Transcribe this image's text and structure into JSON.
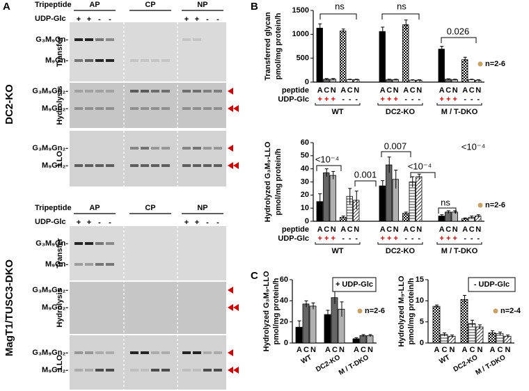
{
  "panel_a": {
    "label": "A",
    "blocks": [
      {
        "title": "DC2-KO",
        "tripeptide": "Tripeptide",
        "udp": "UDP-Glc",
        "lanes": [
          "AP",
          "CP",
          "NP"
        ],
        "signs": [
          "+",
          "+",
          "-",
          "-",
          "+",
          "+",
          "-",
          "-"
        ],
        "sections": [
          {
            "name": "Transfer",
            "bands": [
              "G₃M₉Gn-",
              "M₉Gn-"
            ]
          },
          {
            "name": "Hydrolysis",
            "bands": [
              "G₃M₉Gn₂-",
              "M₉Gn₂-"
            ]
          },
          {
            "name": "LLO",
            "bands": [
              "G₃M₉Gn₂-",
              "M₉Gn₂-"
            ]
          }
        ]
      },
      {
        "title": "MagT1/TUSC3-DKO",
        "tripeptide": "Tripeptide",
        "udp": "UDP-Glc",
        "lanes": [
          "AP",
          "CP",
          "NP"
        ],
        "signs": [
          "+",
          "+",
          "-",
          "-",
          "+",
          "+",
          "-",
          "-"
        ],
        "sections": [
          {
            "name": "Transfer",
            "bands": [
              "G₃M₉Gn-",
              "M₉Gn-"
            ]
          },
          {
            "name": "Hydrolysis",
            "bands": [
              "G₃M₉Gn₂-",
              "M₉Gn₂-"
            ]
          },
          {
            "name": "LLO",
            "bands": [
              "G₃M₉Gn₂-",
              "M₉Gn₂-"
            ]
          }
        ]
      }
    ]
  },
  "chart_data": [
    {
      "type": "bar",
      "panel": "B",
      "ylabel_lines": [
        "Transferred glycan",
        "pmol/mg protein/h"
      ],
      "ylim": [
        0,
        1500
      ],
      "yticks": [
        0,
        500,
        1000,
        1500
      ],
      "categories": [
        "A",
        "C",
        "N",
        "A",
        "C",
        "N",
        "A",
        "C",
        "N",
        "A",
        "C",
        "N",
        "A",
        "C",
        "N",
        "A",
        "C",
        "N"
      ],
      "udp": [
        "+",
        "+",
        "+",
        "-",
        "-",
        "-",
        "+",
        "+",
        "+",
        "-",
        "-",
        "-",
        "+",
        "+",
        "+",
        "-",
        "-",
        "-"
      ],
      "row_labels": [
        "peptide",
        "UDP-Glc"
      ],
      "groups": [
        "WT",
        "DC2-KO",
        "M / T-DKO"
      ],
      "values": [
        1130,
        60,
        60,
        1070,
        50,
        50,
        1060,
        50,
        50,
        1200,
        40,
        40,
        690,
        60,
        50,
        470,
        50,
        40
      ],
      "errors": [
        90,
        15,
        15,
        40,
        10,
        10,
        90,
        10,
        10,
        100,
        10,
        10,
        60,
        10,
        10,
        50,
        10,
        10
      ],
      "colors": [
        "#000000",
        "#666666",
        "#b0b0b0",
        "checker",
        "hatch",
        "diagonal",
        "#000000",
        "#666666",
        "#b0b0b0",
        "checker",
        "hatch",
        "diagonal",
        "#000000",
        "#666666",
        "#b0b0b0",
        "checker",
        "hatch",
        "diagonal"
      ],
      "annotations": [
        "ns",
        "ns",
        "0.026"
      ],
      "legend": "n=2-6",
      "legend_color": "#c8a165",
      "sign_color": "#d40000"
    },
    {
      "type": "bar",
      "ylabel_lines": [
        "Hydrolyzed G₃M₉-LLO",
        "pmol/mg protein/h"
      ],
      "ylim": [
        0,
        60
      ],
      "yticks": [
        0,
        10,
        20,
        30,
        40,
        50,
        60
      ],
      "categories": [
        "A",
        "C",
        "N",
        "A",
        "C",
        "N",
        "A",
        "C",
        "N",
        "A",
        "C",
        "N",
        "A",
        "C",
        "N",
        "A",
        "C",
        "N"
      ],
      "udp": [
        "+",
        "+",
        "+",
        "-",
        "-",
        "-",
        "+",
        "+",
        "+",
        "-",
        "-",
        "-",
        "+",
        "+",
        "+",
        "-",
        "-",
        "-"
      ],
      "row_labels": [
        "peptide",
        "UDP-Glc"
      ],
      "groups": [
        "WT",
        "DC2-KO",
        "M / T-DKO"
      ],
      "values": [
        15,
        37,
        35,
        3,
        19,
        16,
        27,
        43,
        32,
        6,
        30,
        34,
        4,
        7,
        7,
        2,
        3,
        4
      ],
      "errors": [
        6,
        3,
        3,
        1,
        6,
        7,
        4,
        6,
        7,
        1,
        4,
        2,
        1,
        1,
        1,
        0.5,
        1,
        1
      ],
      "colors": [
        "#000000",
        "#666666",
        "#b0b0b0",
        "checker",
        "hatch",
        "diagonal",
        "#000000",
        "#666666",
        "#b0b0b0",
        "checker",
        "hatch",
        "diagonal",
        "#000000",
        "#666666",
        "#b0b0b0",
        "checker",
        "hatch",
        "diagonal"
      ],
      "annotations": [
        "<10⁻⁴",
        "0.001",
        "0.007",
        "<10⁻⁴",
        "ns",
        "<10⁻⁴"
      ],
      "legend": "n=2-6",
      "legend_color": "#c8a165",
      "sign_color": "#d40000"
    },
    {
      "type": "bar",
      "panel": "C",
      "ylabel_lines": [
        "Hydrolyzed G₃M₉-LLO",
        "pmol/mg protein/h"
      ],
      "ylim": [
        0,
        60
      ],
      "yticks": [
        0,
        20,
        40,
        60
      ],
      "categories": [
        "A",
        "C",
        "N",
        "A",
        "C",
        "N",
        "A",
        "C",
        "N"
      ],
      "groups": [
        "WT",
        "DC2-KO",
        "M / T-DKO"
      ],
      "values": [
        15,
        37,
        35,
        27,
        43,
        32,
        4,
        7,
        7
      ],
      "errors": [
        6,
        3,
        3,
        4,
        6,
        7,
        1,
        1,
        1
      ],
      "colors": [
        "#000000",
        "#666666",
        "#b0b0b0",
        "#000000",
        "#666666",
        "#b0b0b0",
        "#000000",
        "#666666",
        "#b0b0b0"
      ],
      "box_label": "+ UDP-Glc",
      "legend": "n=2-6",
      "legend_color": "#c8a165"
    },
    {
      "type": "bar",
      "ylabel_lines": [
        "Hydrolyzed M₉-LLO",
        "pmol/mg protein/h"
      ],
      "ylim": [
        0,
        15
      ],
      "yticks": [
        0,
        5,
        10,
        15
      ],
      "categories": [
        "A",
        "C",
        "N",
        "A",
        "C",
        "N",
        "A",
        "C",
        "N"
      ],
      "groups": [
        "WT",
        "DC2-KO",
        "M / T-DKO"
      ],
      "values": [
        8.7,
        2,
        1.6,
        10.3,
        4.6,
        3.8,
        2.4,
        2.2,
        1.6
      ],
      "errors": [
        0.3,
        0.4,
        0.3,
        1,
        0.8,
        0.5,
        0.5,
        0.4,
        0.3
      ],
      "colors": [
        "checker",
        "hatch",
        "diagonal",
        "checker",
        "hatch",
        "diagonal",
        "checker",
        "hatch",
        "diagonal"
      ],
      "box_label": "- UDP-Glc",
      "legend": "n=2-4",
      "legend_color": "#c8a165"
    }
  ]
}
